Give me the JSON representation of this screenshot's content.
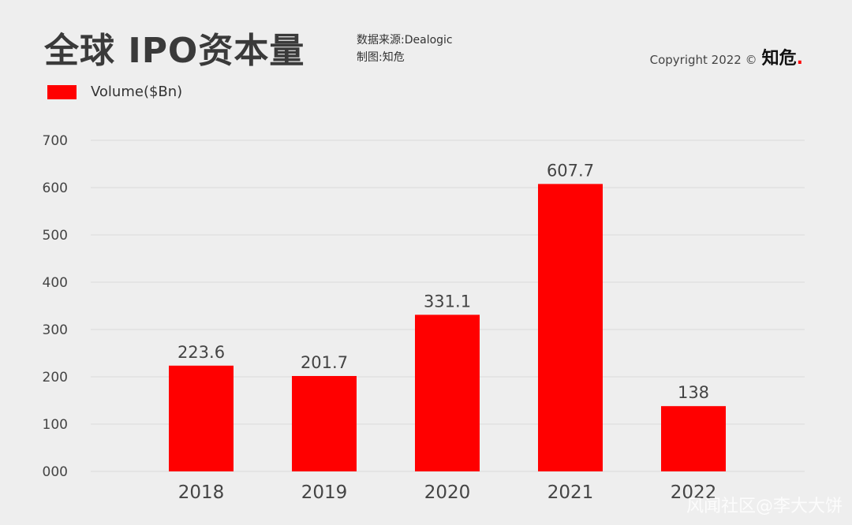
{
  "header": {
    "title": "全球 IPO资本量",
    "source_line": "数据来源:Dealogic",
    "made_by_line": "制图:知危",
    "copyright": "Copyright 2022 ©",
    "logo_text": "知危",
    "logo_dot": "."
  },
  "watermark": "风闻社区@李大大饼",
  "colors": {
    "bar": "#ff0000",
    "grid": "#d9d9d9",
    "text": "#444444"
  },
  "chart_data": {
    "type": "bar",
    "categories": [
      "2018",
      "2019",
      "2020",
      "2021",
      "2022"
    ],
    "series": [
      {
        "name": "Volume($Bn)",
        "values": [
          223.6,
          201.7,
          331.1,
          607.7,
          138
        ]
      }
    ],
    "data_labels": [
      "223.6",
      "201.7",
      "331.1",
      "607.7",
      "138"
    ],
    "y_ticks": [
      "000",
      "100",
      "200",
      "300",
      "400",
      "500",
      "600",
      "700"
    ],
    "ylim": [
      0,
      700
    ],
    "grid": true,
    "legend_position": "top-left"
  }
}
